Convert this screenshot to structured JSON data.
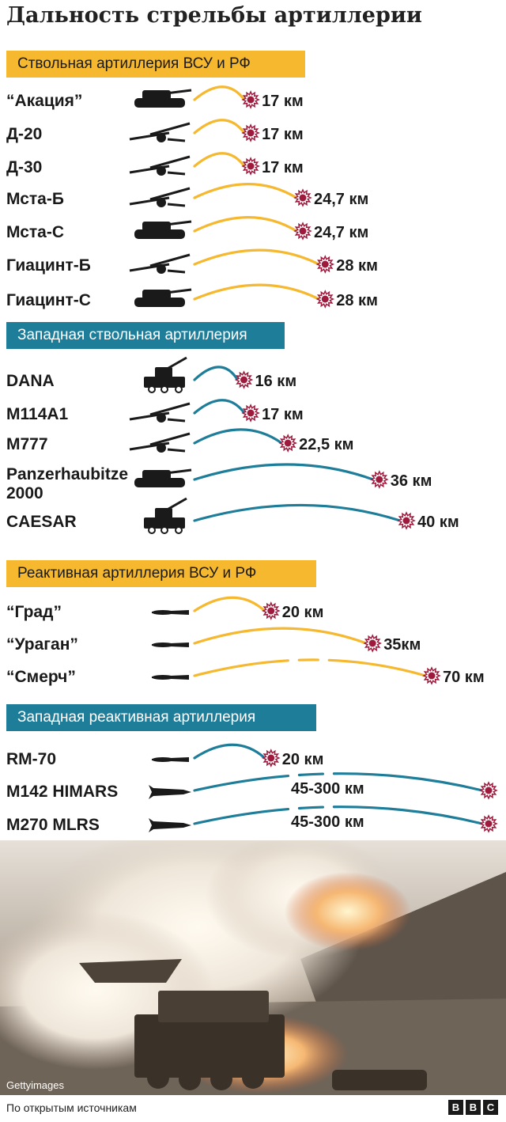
{
  "title": "Дальность стрельбы артиллерии",
  "colors": {
    "yellow": "#f5b82e",
    "blue": "#1e7d99",
    "burst": "#9e1b3e"
  },
  "chart_data": [
    {
      "type": "bar",
      "header": "Ствольная артиллерия ВСУ и РФ",
      "color": "yellow",
      "items": [
        {
          "name": "“Акация”",
          "label": "17 км",
          "value": 17,
          "icon": "sp-gun-icon"
        },
        {
          "name": "Д-20",
          "label": "17 км",
          "value": 17,
          "icon": "towed-howitzer-icon"
        },
        {
          "name": "Д-30",
          "label": "17 км",
          "value": 17,
          "icon": "towed-howitzer-icon"
        },
        {
          "name": "Мста-Б",
          "label": "24,7 км",
          "value": 24.7,
          "icon": "towed-howitzer-icon"
        },
        {
          "name": "Мста-С",
          "label": "24,7 км",
          "value": 24.7,
          "icon": "sp-gun-icon"
        },
        {
          "name": "Гиацинт-Б",
          "label": "28 км",
          "value": 28,
          "icon": "towed-howitzer-icon"
        },
        {
          "name": "Гиацинт-С",
          "label": "28 км",
          "value": 28,
          "icon": "sp-gun-icon"
        }
      ]
    },
    {
      "type": "bar",
      "header": "Западная ствольная артиллерия",
      "color": "blue",
      "items": [
        {
          "name": "DANA",
          "label": "16 км",
          "value": 16,
          "icon": "truck-gun-icon"
        },
        {
          "name": "M114A1",
          "label": "17 км",
          "value": 17,
          "icon": "towed-howitzer-icon"
        },
        {
          "name": "M777",
          "label": "22,5 км",
          "value": 22.5,
          "icon": "towed-howitzer-icon"
        },
        {
          "name": "Panzerhaubitze 2000",
          "label": "36 км",
          "value": 36,
          "icon": "sp-gun-icon"
        },
        {
          "name": "CAESAR",
          "label": "40 км",
          "value": 40,
          "icon": "truck-gun-icon"
        }
      ]
    },
    {
      "type": "bar",
      "header": "Реактивная артиллерия ВСУ и РФ",
      "color": "yellow",
      "items": [
        {
          "name": "“Град”",
          "label": "20 км",
          "value": 20,
          "icon": "rocket-icon"
        },
        {
          "name": "“Ураган”",
          "label": "35км",
          "value": 35,
          "icon": "rocket-icon"
        },
        {
          "name": "“Смерч”",
          "label": "70 км",
          "value": 70,
          "icon": "rocket-icon",
          "dashed": true
        }
      ]
    },
    {
      "type": "bar",
      "header": "Западная реактивная артиллерия",
      "color": "blue",
      "items": [
        {
          "name": "RM-70",
          "label": "20 км",
          "value": 20,
          "icon": "rocket-icon"
        },
        {
          "name": "M142 HIMARS",
          "label": "45-300 км",
          "value": [
            45,
            300
          ],
          "icon": "missile-icon",
          "dashed": true
        },
        {
          "name": "M270 MLRS",
          "label": "45-300 км",
          "value": [
            45,
            300
          ],
          "icon": "missile-icon",
          "dashed": true
        }
      ]
    }
  ],
  "photo_credit": "Gettyimages",
  "footer_source": "По открытым источникам",
  "brand": [
    "B",
    "B",
    "C"
  ]
}
